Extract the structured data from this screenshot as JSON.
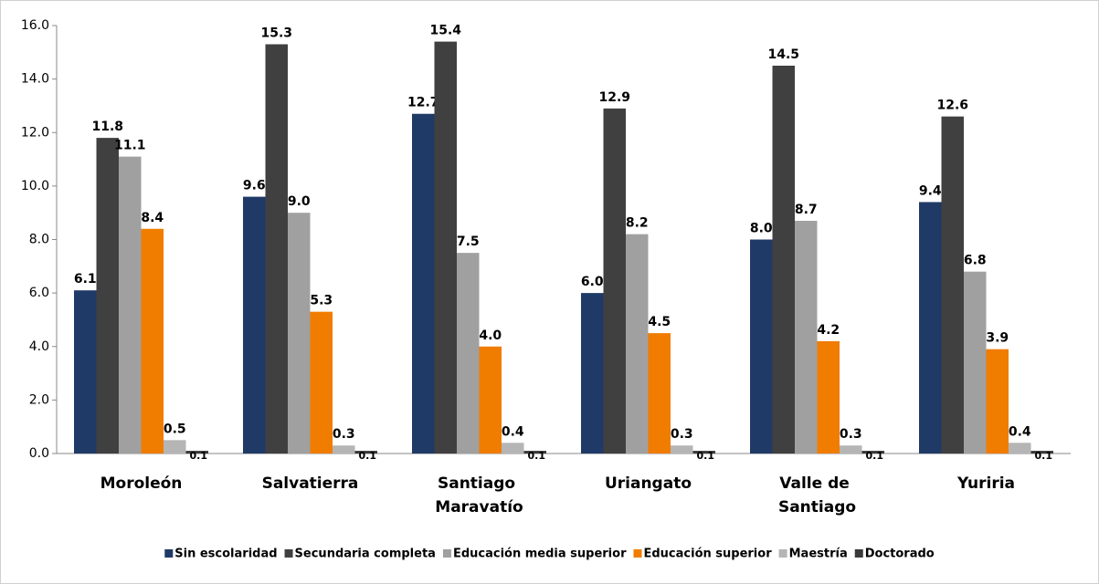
{
  "chart_data": {
    "type": "bar",
    "categories": [
      "Moroleón",
      "Salvatierra",
      "Santiago Maravatío",
      "Uriangato",
      "Valle de Santiago",
      "Yuriria"
    ],
    "series": [
      {
        "name": "Sin escolaridad",
        "color": "#1f3a66",
        "values": [
          6.1,
          9.6,
          12.7,
          6.0,
          8.0,
          9.4
        ],
        "value_labels": [
          "6.1",
          "9.6",
          "12.7",
          "6.0",
          "8.0",
          "9.4"
        ]
      },
      {
        "name": "Secundaria completa",
        "color": "#404040",
        "values": [
          11.8,
          15.3,
          15.4,
          12.9,
          14.5,
          12.6
        ],
        "value_labels": [
          "11.8",
          "15.3",
          "15.4",
          "12.9",
          "14.5",
          "12.6"
        ]
      },
      {
        "name": "Educación media superior",
        "color": "#a0a0a0",
        "values": [
          11.1,
          9.0,
          7.5,
          8.2,
          8.7,
          6.8
        ],
        "value_labels": [
          "11.1",
          "9.0",
          "7.5",
          "8.2",
          "8.7",
          "6.8"
        ]
      },
      {
        "name": "Educación superior",
        "color": "#f07c00",
        "values": [
          8.4,
          5.3,
          4.0,
          4.5,
          4.2,
          3.9
        ],
        "value_labels": [
          "8.4",
          "5.3",
          "4.0",
          "4.5",
          "4.2",
          "3.9"
        ]
      },
      {
        "name": "Maestría",
        "color": "#b5b5b5",
        "values": [
          0.5,
          0.3,
          0.4,
          0.3,
          0.3,
          0.4
        ],
        "value_labels": [
          "0.5",
          "0.3",
          "0.4",
          "0.3",
          "0.3",
          "0.4"
        ]
      },
      {
        "name": "Doctorado",
        "color": "#3a3a3a",
        "values": [
          0.1,
          0.1,
          0.1,
          0.1,
          0.1,
          0.1
        ],
        "value_labels": [
          "0.1",
          "0.1",
          "0.1",
          "0.1",
          "0.1",
          "0.1"
        ]
      }
    ],
    "ylim": [
      0,
      16
    ],
    "yticks": [
      {
        "value": 0,
        "label": "0.0"
      },
      {
        "value": 2,
        "label": "2.0"
      },
      {
        "value": 4,
        "label": "4.0"
      },
      {
        "value": 6,
        "label": "6.0"
      },
      {
        "value": 8,
        "label": "8.0"
      },
      {
        "value": 10,
        "label": "10.0"
      },
      {
        "value": 12,
        "label": "12.0"
      },
      {
        "value": 14,
        "label": "14.0"
      },
      {
        "value": 16,
        "label": "16.0"
      }
    ],
    "grid": false,
    "legend": "bottom"
  }
}
